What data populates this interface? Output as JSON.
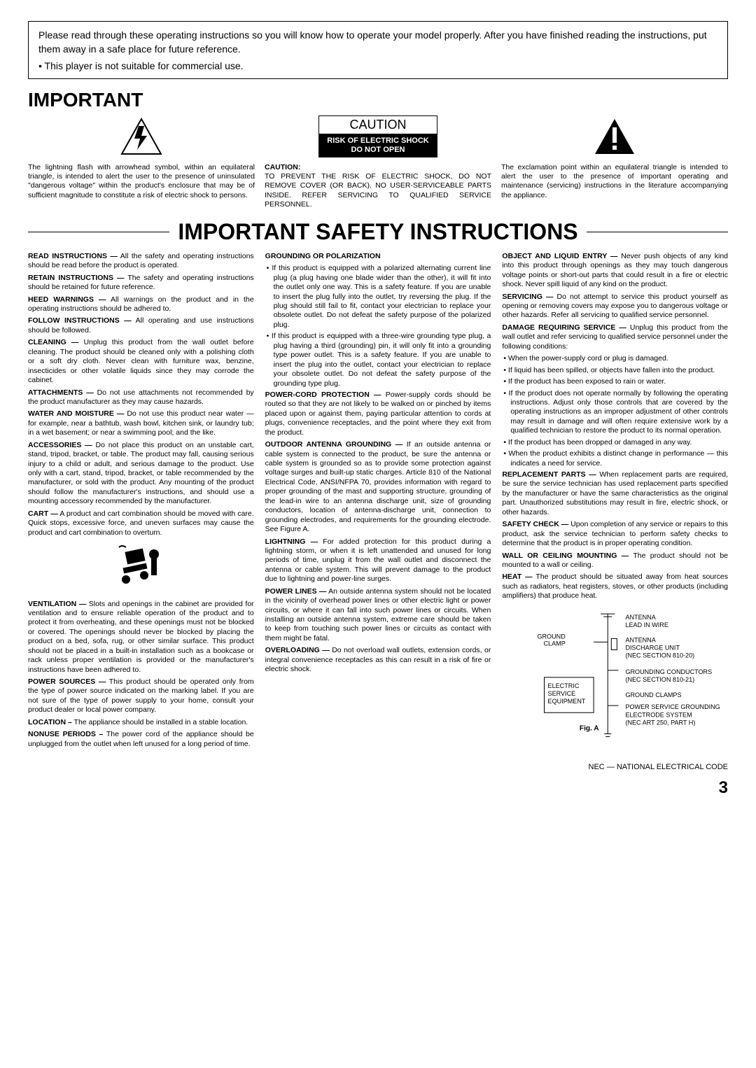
{
  "intro": {
    "p1": "Please read through these operating instructions so you will know how to operate your model properly. After you have finished reading the instructions, put them away in a safe place for future reference.",
    "bullet": "• This player is not suitable for commercial use."
  },
  "important_title": "IMPORTANT",
  "warn_left": "The lightning flash with arrowhead symbol, within an equilateral triangle, is intended to alert the user to the presence of uninsulated \"dangerous voltage\" within the product's enclosure that may be of sufficient magnitude to constitute a risk of electric shock to persons.",
  "caution_word": "CAUTION",
  "caution_black1": "RISK OF ELECTRIC SHOCK",
  "caution_black2": "DO NOT OPEN",
  "caution_sub": "CAUTION:",
  "warn_mid": "TO PREVENT THE RISK OF ELECTRIC SHOCK, DO NOT REMOVE COVER (OR BACK). NO USER-SERVICEABLE PARTS INSIDE. REFER SERVICING TO QUALIFIED SERVICE PERSONNEL.",
  "warn_right": "The exclamation point within an equilateral triangle is intended to alert the user to the presence of important operating and maintenance (servicing) instructions in the literature accompanying the appliance.",
  "safety_title": "IMPORTANT SAFETY INSTRUCTIONS",
  "col1": [
    {
      "t": "READ INSTRUCTIONS —",
      "b": " All the safety and operating instructions should be read before the product is operated."
    },
    {
      "t": "RETAIN INSTRUCTIONS —",
      "b": " The safety and operating instructions should be retained for future reference."
    },
    {
      "t": "HEED WARNINGS —",
      "b": " All warnings on the product and in the operating instructions should be adhered to."
    },
    {
      "t": "FOLLOW INSTRUCTIONS —",
      "b": " All operating and use instructions should be followed."
    },
    {
      "t": "CLEANING —",
      "b": " Unplug this product from the wall outlet before cleaning. The product should be cleaned only with a polishing cloth or a soft dry cloth. Never clean with furniture wax, benzine, insecticides or other volatile liquids since they may corrode the cabinet."
    },
    {
      "t": "ATTACHMENTS —",
      "b": " Do not use attachments not recommended by the product manufacturer as they may cause hazards."
    },
    {
      "t": "WATER AND MOISTURE —",
      "b": " Do not use this product near water — for example, near a bathtub, wash bowl, kitchen sink, or laundry tub; in a wet basement; or near a swimming pool; and the like."
    },
    {
      "t": "ACCESSORIES —",
      "b": " Do not place this product on an unstable cart, stand, tripod, bracket, or table. The product may fall, causing serious injury to a child or adult, and serious damage to the product. Use only with a cart, stand, tripod, bracket, or table recommended by the manufacturer, or sold with the product. Any mounting of the product should follow the manufacturer's instructions, and should use a mounting accessory recommended by the manufacturer."
    },
    {
      "t": "CART —",
      "b": " A product and cart combination should be moved with care. Quick stops, excessive force, and uneven surfaces may cause the product and cart combination to overturn."
    }
  ],
  "col1b": [
    {
      "t": "VENTILATION —",
      "b": " Slots and openings in the cabinet are provided for ventilation and to ensure reliable operation of the product and to protect it from overheating, and these openings must not be blocked or covered. The openings should never be blocked by placing the product on a bed, sofa, rug, or other similar surface. This product should not be placed in a built-in installation such as a bookcase or rack unless proper ventilation is provided or the manufacturer's instructions have been adhered to."
    },
    {
      "t": "POWER SOURCES —",
      "b": " This product should be operated only from the type of power source indicated on the marking label. If you are not sure of the type of power supply to your home, consult your product dealer or local power company."
    },
    {
      "t": "LOCATION –",
      "b": " The appliance should be installed in a stable location."
    },
    {
      "t": "NONUSE PERIODS –",
      "b": " The power cord of the appliance should be unplugged from the outlet when left unused for a long period of time."
    }
  ],
  "col2_h1": "GROUNDING OR POLARIZATION",
  "col2_b1": "If this product is equipped with a polarized alternating current line plug (a plug having one blade wider than the other), it will fit into the outlet only one way. This is a safety feature. If you are unable to insert the plug fully into the outlet, try reversing the plug. If the plug should still fail to fit, contact your electrician to replace your obsolete outlet. Do not defeat the safety purpose of the polarized plug.",
  "col2_b2": "If this product is equipped with a three-wire grounding type plug, a plug having a third (grounding) pin, it will only fit into a grounding type power outlet. This is a safety feature. If you are unable to insert the plug into the outlet, contact your electrician to replace your obsolete outlet. Do not defeat the safety purpose of the grounding type plug.",
  "col2": [
    {
      "t": "POWER-CORD PROTECTION —",
      "b": " Power-supply cords should be routed so that they are not likely to be walked on or pinched by items placed upon or against them, paying particular attention to cords at plugs, convenience receptacles, and the point where they exit from the product."
    },
    {
      "t": "OUTDOOR ANTENNA GROUNDING —",
      "b": " If an outside antenna or cable system is connected to the product, be sure the antenna or cable system is grounded so as to provide some protection against voltage surges and built-up static charges. Article 810 of the National Electrical Code, ANSI/NFPA 70, provides information with regard to proper grounding of the mast and supporting structure, grounding of the lead-in wire to an antenna discharge unit, size of grounding conductors, location of antenna-discharge unit, connection to grounding electrodes, and requirements for the grounding electrode. See Figure A."
    },
    {
      "t": "LIGHTNING —",
      "b": " For added protection for this product during a lightning storm, or when it is left unattended and unused for long periods of time, unplug it from the wall outlet and disconnect the antenna or cable system. This will prevent damage to the product due to lightning and power-line surges."
    },
    {
      "t": "POWER LINES —",
      "b": " An outside antenna system should not be located in the vicinity of overhead power lines or other electric light or power circuits, or where it can fall into such power lines or circuits. When installing an outside antenna system, extreme care should be taken to keep from touching such power lines or circuits as contact with them might be fatal."
    },
    {
      "t": "OVERLOADING —",
      "b": " Do not overload wall outlets, extension cords, or integral convenience receptacles as this can result in a risk of fire or electric shock."
    }
  ],
  "col3": [
    {
      "t": "OBJECT AND LIQUID ENTRY —",
      "b": " Never push objects of any kind into this product through openings as they may touch dangerous voltage points or short-out parts that could result in a fire or electric shock. Never spill liquid of any kind on the product."
    },
    {
      "t": "SERVICING —",
      "b": " Do not attempt to service this product yourself as opening or removing covers may expose you to dangerous voltage or other hazards. Refer all servicing to qualified service personnel."
    },
    {
      "t": "DAMAGE REQUIRING SERVICE —",
      "b": " Unplug this product from the wall outlet and refer servicing to qualified service personnel under the following conditions:"
    }
  ],
  "col3_sub": [
    "When the power-supply cord or plug is damaged.",
    "If liquid has been spilled, or objects have fallen into the product.",
    "If the product has been exposed to rain or water.",
    "If the product does not operate normally by following the operating instructions. Adjust only those controls that are covered by the operating instructions as an improper adjustment of other controls may result in damage and will often require extensive work by a qualified technician to restore the product to its normal operation.",
    "If the product has been dropped or damaged in any way.",
    "When the product exhibits a distinct change in performance — this indicates a need for service."
  ],
  "col3b": [
    {
      "t": "REPLACEMENT PARTS —",
      "b": " When replacement parts are required, be sure the service technician has used replacement parts specified by the manufacturer or have the same characteristics as the original part. Unauthorized substitutions may result in fire, electric shock, or other hazards."
    },
    {
      "t": "SAFETY CHECK —",
      "b": " Upon completion of any service or repairs to this product, ask the service technician to perform safety checks to determine that the product is in proper operating condition."
    },
    {
      "t": "WALL OR CEILING MOUNTING —",
      "b": " The product should not be mounted to a wall or ceiling."
    },
    {
      "t": "HEAT —",
      "b": " The product should be situated away from heat sources such as radiators, heat registers, stoves, or other products (including amplifiers) that produce heat."
    }
  ],
  "fig": {
    "ground_clamp": "GROUND CLAMP",
    "electric": "ELECTRIC SERVICE EQUIPMENT",
    "antenna_lead": "ANTENNA LEAD IN WIRE",
    "discharge": "ANTENNA DISCHARGE UNIT (NEC SECTION 810-20)",
    "conductors": "GROUNDING CONDUCTORS (NEC SECTION 810-21)",
    "clamps": "GROUND CLAMPS",
    "electrode": "POWER SERVICE GROUNDING ELECTRODE SYSTEM (NEC ART 250, PART H)",
    "label": "Fig. A"
  },
  "nec": "NEC — NATIONAL ELECTRICAL CODE",
  "page": "3"
}
